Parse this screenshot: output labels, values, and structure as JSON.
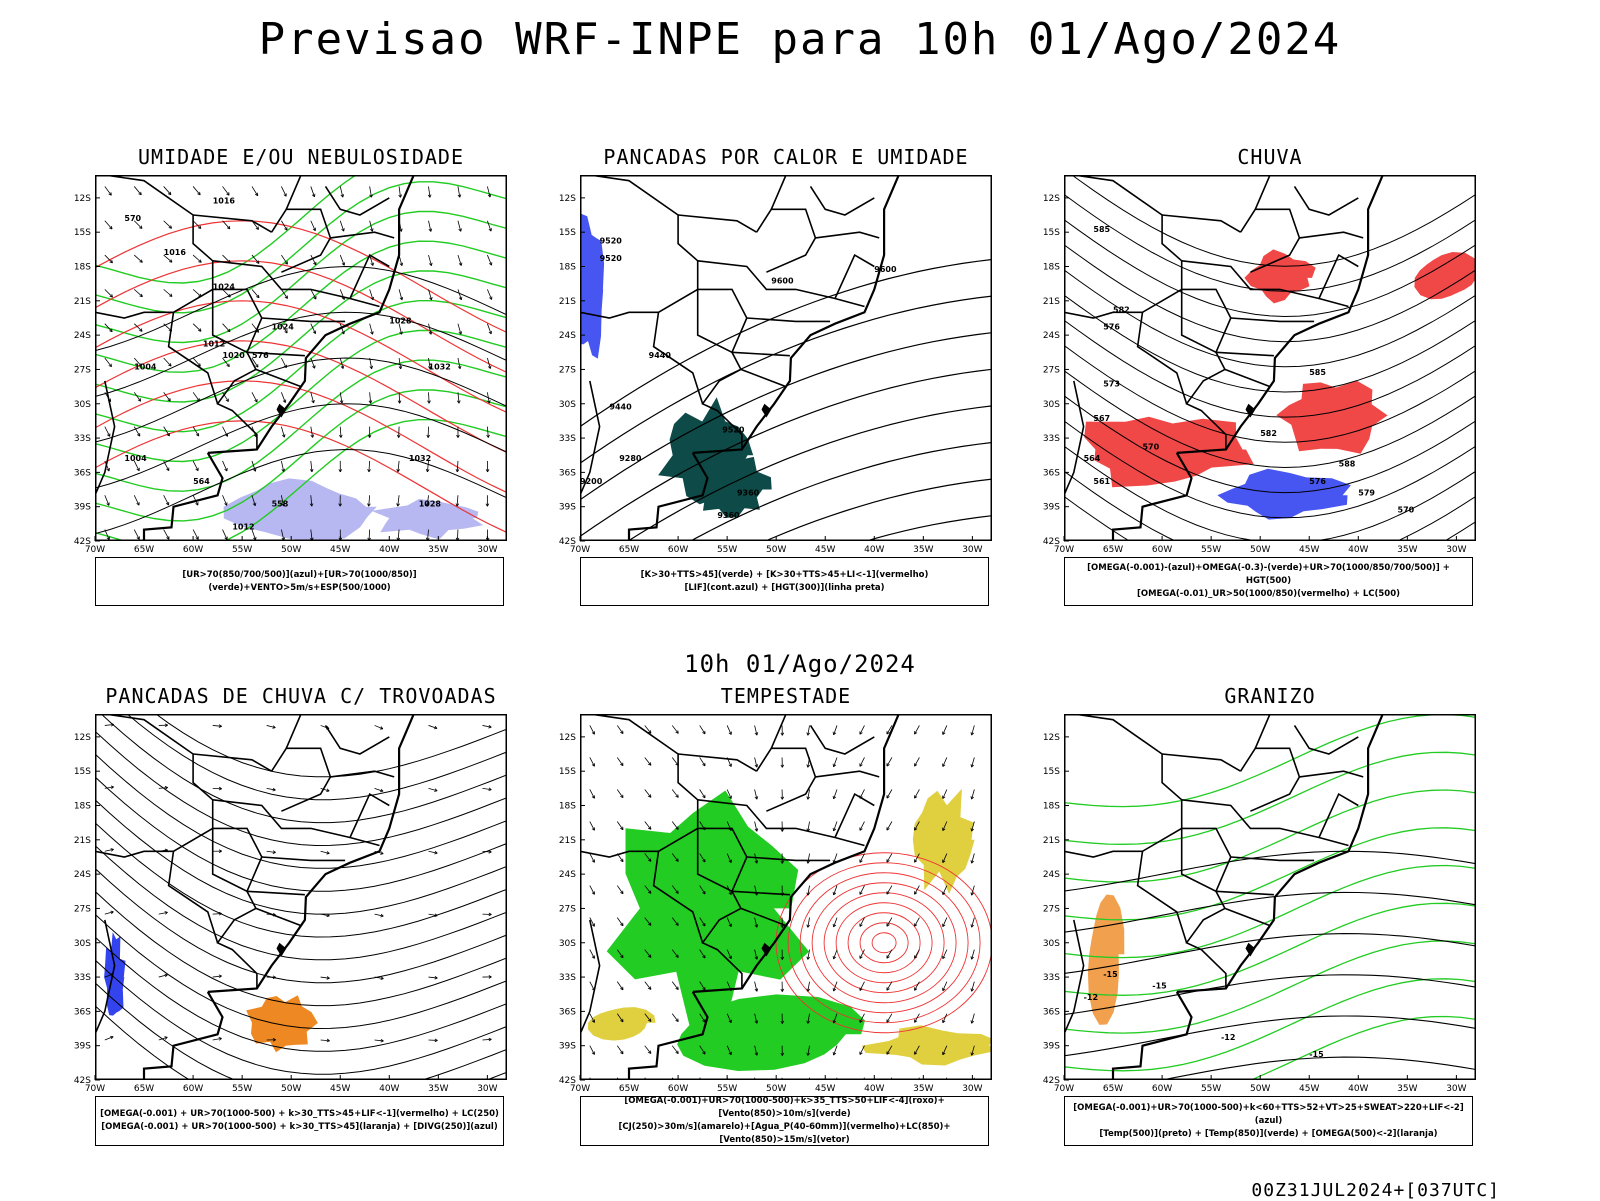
{
  "header": {
    "title": "Previsao WRF-INPE  para 10h 01/Ago/2024",
    "mid_date": "10h 01/Ago/2024",
    "footer": "00Z31JUL2024+[037UTC]"
  },
  "axes": {
    "lat_labels": [
      "12S",
      "15S",
      "18S",
      "21S",
      "24S",
      "27S",
      "30S",
      "33S",
      "36S",
      "39S",
      "42S"
    ],
    "lon_labels": [
      "70W",
      "65W",
      "60W",
      "55W",
      "50W",
      "45W",
      "40W",
      "35W",
      "30W"
    ]
  },
  "colors": {
    "coast": "#000000",
    "blue": "#3344ee",
    "green": "#22cc22",
    "red": "#ee3333",
    "orange": "#ee8822",
    "yellow": "#e0d040",
    "teal": "#0e4a47",
    "lavender": "#aaaaee"
  },
  "panels": [
    {
      "id": "umidade",
      "title": "UMIDADE E/OU NEBULOSIDADE",
      "legend": [
        "[UR>70(850/700/500)](azul)+[UR>70(1000/850)](verde)+VENTO>5m/s+ESP(500/1000)"
      ],
      "contour_labels": [
        "1016",
        "1016",
        "1024",
        "1024",
        "1012",
        "1004",
        "1020",
        "1032",
        "1028",
        "1032",
        "1028",
        "1012",
        "1004",
        "570",
        "576",
        "564",
        "558"
      ]
    },
    {
      "id": "pancadas-calor",
      "title": "PANCADAS POR CALOR E UMIDADE",
      "legend": [
        "[K>30+TTS>45](verde) + [K>30+TTS>45+LI<-1](vermelho)",
        "[LIF](cont.azul) + [HGT(300)](linha preta)"
      ],
      "contour_labels": [
        "9600",
        "9600",
        "9520",
        "9520",
        "9440",
        "9520",
        "9440",
        "9280",
        "9360",
        "9200",
        "9360"
      ]
    },
    {
      "id": "chuva",
      "title": "CHUVA",
      "legend": [
        "[OMEGA(-0.001)-(azul)+OMEGA(-0.3)-(verde)+UR>70(1000/850/700/500)] + HGT(500)",
        "[OMEGA(-0.01)_UR>50(1000/850)(vermelho) + LC(500)"
      ],
      "contour_labels": [
        "585",
        "582",
        "576",
        "573",
        "567",
        "564",
        "561",
        "570",
        "582",
        "585",
        "588",
        "579",
        "576",
        "570"
      ]
    },
    {
      "id": "pancadas-trovoadas",
      "title": "PANCADAS DE CHUVA C/ TROVOADAS",
      "legend": [
        "[OMEGA(-0.001) + UR>70(1000-500) + k>30_TTS>45+LIF<-1](vermelho) + LC(250)",
        "[OMEGA(-0.001) + UR>70(1000-500) + k>30_TTS>45](laranja) + [DIVG(250)](azul)"
      ],
      "contour_labels": []
    },
    {
      "id": "tempestade",
      "title": "TEMPESTADE",
      "legend": [
        "[OMEGA(-0.001)+UR>70(1000-500)+k>35_TTS>50+LIF<-4](roxo)+[Vento(850)>10m/s](verde)",
        "[CJ(250)>30m/s](amarelo)+[Agua_P(40-60mm)](vermelho)+LC(850)+[Vento(850)>15m/s](vetor)"
      ],
      "contour_labels": []
    },
    {
      "id": "granizo",
      "title": "GRANIZO",
      "legend": [
        "[OMEGA(-0.001)+UR>70(1000-500)+k<60+TTS>52+VT>25+SWEAT>220+LIF<-2](azul)",
        "[Temp(500)](preto) + [Temp(850)](verde) + [OMEGA(500)<-2](laranja)"
      ],
      "contour_labels": [
        "-15",
        "-12",
        "-15",
        "-15",
        "-12"
      ]
    }
  ]
}
